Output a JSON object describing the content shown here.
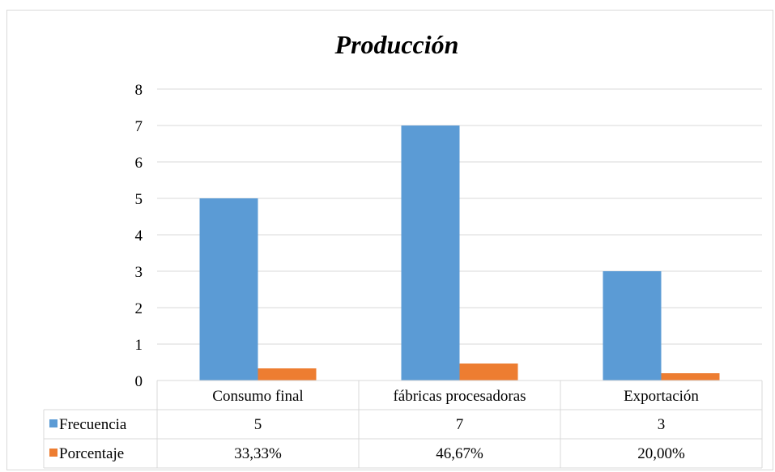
{
  "chart_data": {
    "type": "bar",
    "title": "Producción",
    "categories": [
      "Consumo final",
      "fábricas procesadoras",
      "Exportación"
    ],
    "series": [
      {
        "name": "Frecuencia",
        "values": [
          5,
          7,
          3
        ],
        "table_values": [
          "5",
          "7",
          "3"
        ],
        "color": "#5b9bd5"
      },
      {
        "name": "Porcentaje",
        "values": [
          0.3333,
          0.4667,
          0.2
        ],
        "table_values": [
          "33,33%",
          "46,67%",
          "20,00%"
        ],
        "color": "#ed7d31"
      }
    ],
    "ylim": [
      0,
      8
    ],
    "yticks": [
      0,
      1,
      2,
      3,
      4,
      5,
      6,
      7,
      8
    ],
    "grid": true,
    "legend": "data table"
  }
}
